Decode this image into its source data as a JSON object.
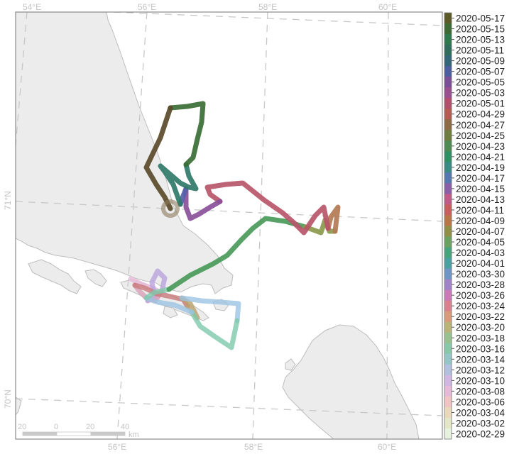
{
  "graticule": {
    "lon_labels": [
      "54°E",
      "56°E",
      "58°E",
      "60°E"
    ],
    "lat_labels": [
      "71°N",
      "70°N"
    ]
  },
  "legend": {
    "dates": [
      "2020-05-17",
      "2020-05-15",
      "2020-05-13",
      "2020-05-11",
      "2020-05-09",
      "2020-05-07",
      "2020-05-05",
      "2020-05-03",
      "2020-05-01",
      "2020-04-29",
      "2020-04-27",
      "2020-04-25",
      "2020-04-23",
      "2020-04-21",
      "2020-04-19",
      "2020-04-17",
      "2020-04-15",
      "2020-04-13",
      "2020-04-11",
      "2020-04-09",
      "2020-04-07",
      "2020-04-05",
      "2020-04-03",
      "2020-04-01",
      "2020-03-30",
      "2020-03-28",
      "2020-03-26",
      "2020-03-24",
      "2020-03-22",
      "2020-03-20",
      "2020-03-18",
      "2020-03-16",
      "2020-03-14",
      "2020-03-12",
      "2020-03-10",
      "2020-03-08",
      "2020-03-06",
      "2020-03-04",
      "2020-03-02",
      "2020-02-29"
    ],
    "colors": [
      "#5c5a26",
      "#3e6b35",
      "#2e7a4e",
      "#2f6e5c",
      "#34667a",
      "#4d5ea0",
      "#7b4f97",
      "#9a4f8f",
      "#b24f6d",
      "#b45c52",
      "#8d6a43",
      "#6f7d3e",
      "#4d8b52",
      "#2f8f65",
      "#3a8a85",
      "#5577b0",
      "#8a5fa8",
      "#c05a86",
      "#c85d5d",
      "#b97545",
      "#8f8f45",
      "#6aa060",
      "#46a37c",
      "#4aa0a0",
      "#6f95c6",
      "#a082c8",
      "#cc78b8",
      "#d97f8e",
      "#d89a78",
      "#b9b377",
      "#98c18f",
      "#86c8a8",
      "#95c6c7",
      "#b2c0e0",
      "#d1b5e2",
      "#e6b9d8",
      "#efc4c2",
      "#ead8bb",
      "#e4e7c7",
      "#e6f1de"
    ]
  },
  "scalebar": {
    "labels": [
      "20",
      "0",
      "20",
      "40"
    ],
    "unit": "km"
  },
  "track": {
    "colors": {
      "start": "#e6b9d8",
      "march_lilac": "#b9a3dc",
      "march_pink": "#d9a0b8",
      "march_red": "#c9797a",
      "march_tan": "#b9a06a",
      "march_blue": "#9cc3e2",
      "march_teal": "#7ec9ab",
      "april_green": "#4a9a5b",
      "april_olive": "#8a9a4a",
      "april_brown": "#b27a55",
      "april_red": "#b9566a",
      "may_purple": "#8a4f9a",
      "may_blue": "#5460a8",
      "may_teal": "#2f7a68",
      "may_green": "#3a6e35",
      "may_end": "#5a4a2a"
    }
  }
}
